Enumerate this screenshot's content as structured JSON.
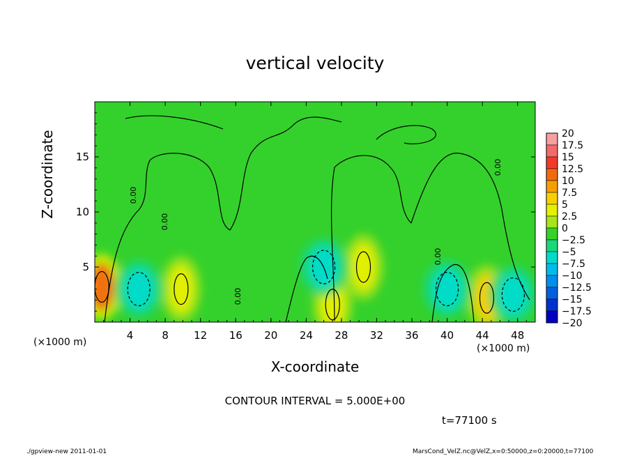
{
  "chart_data": {
    "type": "heatmap",
    "title": "vertical velocity",
    "xlabel": "X-coordinate",
    "ylabel": "Z-coordinate",
    "x_unit_note": "(×1000 m)",
    "x_unit_note_right": "(×1000 m)",
    "xlim": [
      0,
      50
    ],
    "ylim": [
      0,
      20
    ],
    "x_ticks": [
      4,
      8,
      12,
      16,
      20,
      24,
      28,
      32,
      36,
      40,
      44,
      48
    ],
    "y_ticks": [
      5,
      10,
      15
    ],
    "contour_interval_text": "CONTOUR INTERVAL = 5.000E+00",
    "contour_label": "0.00",
    "time_text": "t=77100 s",
    "colorbar": {
      "levels": [
        "20",
        "17.5",
        "15",
        "12.5",
        "10",
        "7.5",
        "5",
        "2.5",
        "0",
        "−2.5",
        "−5",
        "−7.5",
        "−10",
        "−12.5",
        "−15",
        "−17.5",
        "−20"
      ],
      "colors": [
        "#f7a0a0",
        "#f46a6a",
        "#f23a2a",
        "#f26a10",
        "#f6a000",
        "#f8d000",
        "#e6f000",
        "#a8e41a",
        "#36d22a",
        "#1ad87a",
        "#00dccc",
        "#00bcec",
        "#0090ec",
        "#0060e0",
        "#0030d0",
        "#0000c0",
        "#6000b8"
      ]
    },
    "features": [
      {
        "kind": "updraft",
        "x": 0.8,
        "z": 3.2,
        "value": 12
      },
      {
        "kind": "updraft",
        "x": 9.8,
        "z": 3.0,
        "value": 6
      },
      {
        "kind": "updraft",
        "x": 27.0,
        "z": 1.6,
        "value": 6
      },
      {
        "kind": "updraft",
        "x": 30.5,
        "z": 5.0,
        "value": 4
      },
      {
        "kind": "updraft",
        "x": 44.5,
        "z": 2.2,
        "value": 8
      },
      {
        "kind": "downdraft",
        "x": 5.0,
        "z": 3.0,
        "value": -6
      },
      {
        "kind": "downdraft",
        "x": 26.0,
        "z": 5.0,
        "value": -4
      },
      {
        "kind": "downdraft",
        "x": 40.0,
        "z": 3.0,
        "value": -6
      },
      {
        "kind": "downdraft",
        "x": 47.5,
        "z": 2.5,
        "value": -6
      }
    ]
  },
  "footer": {
    "left": "./gpview-new  2011-01-01",
    "right": "MarsCond_VelZ.nc@VelZ,x=0:50000,z=0:20000,t=77100"
  }
}
